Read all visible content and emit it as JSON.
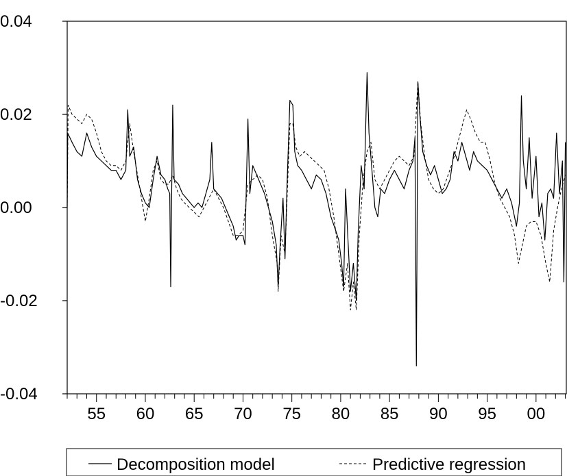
{
  "chart_data": {
    "type": "line",
    "title": "",
    "xlabel": "",
    "ylabel": "",
    "xlim": [
      1952.0,
      2003.1
    ],
    "ylim": [
      -0.04,
      0.04
    ],
    "yticks": [
      0.04,
      0.02,
      0.0,
      -0.02,
      -0.04
    ],
    "ytick_labels": [
      "0.04",
      "0.02",
      "0.00",
      "-0.02",
      "-0.04"
    ],
    "xticks": [
      1955,
      1960,
      1965,
      1970,
      1975,
      1980,
      1985,
      1990,
      1995,
      2000
    ],
    "xtick_labels": [
      "55",
      "60",
      "65",
      "70",
      "75",
      "80",
      "85",
      "90",
      "95",
      "00"
    ],
    "grid": false,
    "legend": "bottom",
    "series": [
      {
        "name": "Decomposition model",
        "style": "solid",
        "color": "#000000",
        "points": [
          [
            1952.0,
            0.0
          ],
          [
            1952.05,
            0.016
          ],
          [
            1952.5,
            0.014
          ],
          [
            1953.0,
            0.012
          ],
          [
            1953.5,
            0.011
          ],
          [
            1954.0,
            0.016
          ],
          [
            1954.5,
            0.013
          ],
          [
            1955.0,
            0.011
          ],
          [
            1955.5,
            0.01
          ],
          [
            1956.0,
            0.009
          ],
          [
            1956.5,
            0.008
          ],
          [
            1957.0,
            0.008
          ],
          [
            1957.5,
            0.006
          ],
          [
            1958.0,
            0.008
          ],
          [
            1958.2,
            0.021
          ],
          [
            1958.4,
            0.011
          ],
          [
            1958.8,
            0.013
          ],
          [
            1959.2,
            0.006
          ],
          [
            1959.6,
            0.003
          ],
          [
            1960.0,
            0.001
          ],
          [
            1960.4,
            0.0
          ],
          [
            1960.8,
            0.006
          ],
          [
            1961.2,
            0.011
          ],
          [
            1961.6,
            0.007
          ],
          [
            1962.0,
            0.006
          ],
          [
            1962.3,
            0.004
          ],
          [
            1962.5,
            0.003
          ],
          [
            1962.6,
            -0.017
          ],
          [
            1962.7,
            0.003
          ],
          [
            1962.8,
            0.022
          ],
          [
            1962.95,
            0.006
          ],
          [
            1963.4,
            0.005
          ],
          [
            1963.8,
            0.003
          ],
          [
            1964.2,
            0.002
          ],
          [
            1964.6,
            0.001
          ],
          [
            1965.0,
            0.0
          ],
          [
            1965.4,
            0.001
          ],
          [
            1965.8,
            0.0
          ],
          [
            1966.2,
            0.003
          ],
          [
            1966.6,
            0.006
          ],
          [
            1966.8,
            0.014
          ],
          [
            1967.0,
            0.004
          ],
          [
            1967.4,
            0.003
          ],
          [
            1967.8,
            0.002
          ],
          [
            1968.2,
            0.0
          ],
          [
            1968.6,
            -0.002
          ],
          [
            1969.0,
            -0.004
          ],
          [
            1969.3,
            -0.007
          ],
          [
            1969.6,
            -0.006
          ],
          [
            1970.0,
            -0.006
          ],
          [
            1970.2,
            -0.008
          ],
          [
            1970.5,
            0.019
          ],
          [
            1970.7,
            0.003
          ],
          [
            1971.0,
            0.009
          ],
          [
            1971.4,
            0.007
          ],
          [
            1971.8,
            0.005
          ],
          [
            1972.2,
            0.003
          ],
          [
            1972.6,
            0.0
          ],
          [
            1973.0,
            -0.003
          ],
          [
            1973.4,
            -0.008
          ],
          [
            1973.6,
            -0.017
          ],
          [
            1973.8,
            -0.008
          ],
          [
            1974.1,
            0.002
          ],
          [
            1974.3,
            -0.011
          ],
          [
            1974.5,
            0.004
          ],
          [
            1974.8,
            0.023
          ],
          [
            1975.1,
            0.022
          ],
          [
            1975.3,
            0.012
          ],
          [
            1975.6,
            0.009
          ],
          [
            1976.0,
            0.008
          ],
          [
            1976.5,
            0.006
          ],
          [
            1977.0,
            0.004
          ],
          [
            1977.5,
            0.007
          ],
          [
            1978.0,
            0.006
          ],
          [
            1978.5,
            0.003
          ],
          [
            1979.0,
            -0.002
          ],
          [
            1979.5,
            -0.005
          ],
          [
            1979.8,
            -0.007
          ],
          [
            1980.1,
            -0.012
          ],
          [
            1980.3,
            -0.017
          ],
          [
            1980.5,
            0.004
          ],
          [
            1980.7,
            -0.005
          ],
          [
            1981.0,
            -0.018
          ],
          [
            1981.3,
            -0.012
          ],
          [
            1981.6,
            -0.02
          ],
          [
            1981.8,
            -0.005
          ],
          [
            1982.1,
            0.009
          ],
          [
            1982.4,
            0.004
          ],
          [
            1982.7,
            0.029
          ],
          [
            1982.9,
            0.016
          ],
          [
            1983.2,
            0.008
          ],
          [
            1983.5,
            0.0
          ],
          [
            1983.8,
            -0.002
          ],
          [
            1984.1,
            0.004
          ],
          [
            1984.5,
            0.003
          ],
          [
            1985.0,
            0.006
          ],
          [
            1985.5,
            0.008
          ],
          [
            1986.0,
            0.006
          ],
          [
            1986.5,
            0.004
          ],
          [
            1987.0,
            0.008
          ],
          [
            1987.4,
            0.01
          ],
          [
            1987.6,
            0.015
          ],
          [
            1987.75,
            -0.034
          ],
          [
            1987.9,
            0.027
          ],
          [
            1988.1,
            0.02
          ],
          [
            1988.4,
            0.012
          ],
          [
            1988.8,
            0.009
          ],
          [
            1989.2,
            0.007
          ],
          [
            1989.6,
            0.009
          ],
          [
            1990.0,
            0.006
          ],
          [
            1990.4,
            0.003
          ],
          [
            1990.8,
            0.004
          ],
          [
            1991.2,
            0.006
          ],
          [
            1991.6,
            0.012
          ],
          [
            1992.0,
            0.01
          ],
          [
            1992.4,
            0.014
          ],
          [
            1992.8,
            0.011
          ],
          [
            1993.2,
            0.008
          ],
          [
            1993.6,
            0.012
          ],
          [
            1994.0,
            0.01
          ],
          [
            1994.5,
            0.009
          ],
          [
            1995.0,
            0.008
          ],
          [
            1995.5,
            0.006
          ],
          [
            1996.0,
            0.004
          ],
          [
            1996.5,
            0.002
          ],
          [
            1997.0,
            0.004
          ],
          [
            1997.5,
            0.001
          ],
          [
            1998.0,
            -0.004
          ],
          [
            1998.3,
            0.001
          ],
          [
            1998.5,
            0.024
          ],
          [
            1998.7,
            0.01
          ],
          [
            1999.0,
            0.004
          ],
          [
            1999.3,
            0.015
          ],
          [
            1999.6,
            0.002
          ],
          [
            2000.0,
            0.011
          ],
          [
            2000.3,
            -0.002
          ],
          [
            2000.6,
            0.001
          ],
          [
            2000.9,
            -0.007
          ],
          [
            2001.2,
            0.003
          ],
          [
            2001.5,
            0.004
          ],
          [
            2001.8,
            0.002
          ],
          [
            2002.1,
            0.016
          ],
          [
            2002.4,
            0.003
          ],
          [
            2002.7,
            0.01
          ],
          [
            2002.85,
            -0.016
          ],
          [
            2003.0,
            0.014
          ]
        ]
      },
      {
        "name": "Predictive regression",
        "style": "dashed",
        "color": "#000000",
        "points": [
          [
            1952.0,
            0.0
          ],
          [
            1952.1,
            0.022
          ],
          [
            1952.5,
            0.02
          ],
          [
            1953.0,
            0.019
          ],
          [
            1953.5,
            0.018
          ],
          [
            1954.0,
            0.02
          ],
          [
            1954.5,
            0.019
          ],
          [
            1955.0,
            0.016
          ],
          [
            1955.5,
            0.012
          ],
          [
            1956.0,
            0.01
          ],
          [
            1956.5,
            0.009
          ],
          [
            1957.0,
            0.009
          ],
          [
            1957.5,
            0.008
          ],
          [
            1958.0,
            0.01
          ],
          [
            1958.4,
            0.018
          ],
          [
            1958.8,
            0.012
          ],
          [
            1959.2,
            0.007
          ],
          [
            1959.6,
            0.002
          ],
          [
            1960.0,
            -0.003
          ],
          [
            1960.4,
            0.002
          ],
          [
            1960.8,
            0.008
          ],
          [
            1961.2,
            0.01
          ],
          [
            1961.6,
            0.006
          ],
          [
            1962.0,
            0.005
          ],
          [
            1962.4,
            0.005
          ],
          [
            1962.8,
            0.007
          ],
          [
            1963.2,
            0.004
          ],
          [
            1963.6,
            0.002
          ],
          [
            1964.0,
            0.001
          ],
          [
            1964.5,
            0.0
          ],
          [
            1965.0,
            -0.001
          ],
          [
            1965.5,
            -0.002
          ],
          [
            1966.0,
            0.0
          ],
          [
            1966.5,
            0.002
          ],
          [
            1967.0,
            0.004
          ],
          [
            1967.5,
            0.002
          ],
          [
            1968.0,
            0.0
          ],
          [
            1968.5,
            -0.003
          ],
          [
            1969.0,
            -0.006
          ],
          [
            1969.5,
            -0.006
          ],
          [
            1970.0,
            -0.005
          ],
          [
            1970.5,
            0.005
          ],
          [
            1971.0,
            0.006
          ],
          [
            1971.5,
            0.007
          ],
          [
            1972.0,
            0.006
          ],
          [
            1972.5,
            0.002
          ],
          [
            1973.0,
            -0.006
          ],
          [
            1973.5,
            -0.012
          ],
          [
            1973.6,
            -0.018
          ],
          [
            1973.9,
            -0.006
          ],
          [
            1974.3,
            -0.01
          ],
          [
            1974.8,
            0.018
          ],
          [
            1975.1,
            0.018
          ],
          [
            1975.4,
            0.013
          ],
          [
            1975.8,
            0.011
          ],
          [
            1976.3,
            0.012
          ],
          [
            1976.8,
            0.011
          ],
          [
            1977.3,
            0.01
          ],
          [
            1977.8,
            0.009
          ],
          [
            1978.3,
            0.008
          ],
          [
            1978.8,
            0.004
          ],
          [
            1979.3,
            -0.002
          ],
          [
            1979.8,
            -0.01
          ],
          [
            1980.3,
            -0.018
          ],
          [
            1980.7,
            -0.012
          ],
          [
            1981.0,
            -0.022
          ],
          [
            1981.3,
            -0.016
          ],
          [
            1981.6,
            -0.022
          ],
          [
            1981.9,
            -0.006
          ],
          [
            1982.3,
            0.006
          ],
          [
            1982.7,
            0.012
          ],
          [
            1983.1,
            0.014
          ],
          [
            1983.5,
            0.006
          ],
          [
            1984.0,
            0.004
          ],
          [
            1984.5,
            0.006
          ],
          [
            1985.0,
            0.008
          ],
          [
            1985.5,
            0.01
          ],
          [
            1986.0,
            0.011
          ],
          [
            1986.5,
            0.01
          ],
          [
            1987.0,
            0.009
          ],
          [
            1987.5,
            0.011
          ],
          [
            1987.9,
            0.027
          ],
          [
            1988.2,
            0.018
          ],
          [
            1988.6,
            0.011
          ],
          [
            1989.0,
            0.006
          ],
          [
            1989.5,
            0.004
          ],
          [
            1990.0,
            0.003
          ],
          [
            1990.5,
            0.004
          ],
          [
            1991.0,
            0.007
          ],
          [
            1991.5,
            0.01
          ],
          [
            1992.0,
            0.014
          ],
          [
            1992.5,
            0.018
          ],
          [
            1992.9,
            0.021
          ],
          [
            1993.3,
            0.019
          ],
          [
            1993.8,
            0.016
          ],
          [
            1994.3,
            0.014
          ],
          [
            1994.8,
            0.014
          ],
          [
            1995.3,
            0.01
          ],
          [
            1995.8,
            0.005
          ],
          [
            1996.3,
            0.002
          ],
          [
            1996.8,
            0.0
          ],
          [
            1997.3,
            -0.002
          ],
          [
            1997.8,
            -0.006
          ],
          [
            1998.2,
            -0.012
          ],
          [
            1998.6,
            -0.008
          ],
          [
            1999.0,
            -0.004
          ],
          [
            1999.5,
            -0.003
          ],
          [
            2000.0,
            -0.003
          ],
          [
            2000.5,
            -0.006
          ],
          [
            2001.0,
            -0.012
          ],
          [
            2001.4,
            -0.016
          ],
          [
            2001.8,
            -0.005
          ],
          [
            2002.2,
            0.0
          ],
          [
            2002.6,
            0.004
          ],
          [
            2003.0,
            0.007
          ]
        ]
      }
    ]
  }
}
